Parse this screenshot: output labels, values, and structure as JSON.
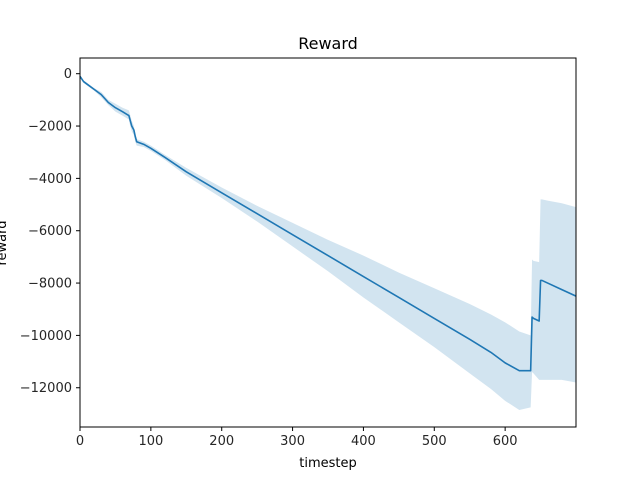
{
  "chart_data": {
    "type": "line",
    "title": "Reward",
    "xlabel": "timestep",
    "ylabel": "reward",
    "xlim": [
      0,
      700
    ],
    "ylim": [
      -13500,
      600
    ],
    "x_ticks": [
      0,
      100,
      200,
      300,
      400,
      500,
      600
    ],
    "y_ticks": [
      0,
      -2000,
      -4000,
      -6000,
      -8000,
      -10000,
      -12000
    ],
    "x_tick_labels": [
      "0",
      "100",
      "200",
      "300",
      "400",
      "500",
      "600"
    ],
    "y_tick_labels": [
      "0",
      "−2000",
      "−4000",
      "−6000",
      "−8000",
      "−10000",
      "−12000"
    ],
    "grid": false,
    "line_color": "#1f77b4",
    "band_color": "#1f77b4",
    "series": [
      {
        "x": [
          0,
          5,
          10,
          20,
          30,
          40,
          50,
          60,
          69,
          70,
          73,
          76,
          78,
          80,
          90,
          100,
          120,
          150,
          200,
          250,
          300,
          350,
          400,
          450,
          500,
          550,
          580,
          600,
          620,
          636,
          638,
          640,
          648,
          650,
          652,
          660,
          680,
          700
        ],
        "values": [
          -100,
          -300,
          -400,
          -600,
          -800,
          -1100,
          -1300,
          -1450,
          -1600,
          -1700,
          -2000,
          -2150,
          -2400,
          -2600,
          -2700,
          -2850,
          -3200,
          -3750,
          -4550,
          -5350,
          -6150,
          -6950,
          -7750,
          -8550,
          -9350,
          -10150,
          -10650,
          -11050,
          -11350,
          -11350,
          -9300,
          -9350,
          -9450,
          -7900,
          -7900,
          -8000,
          -8250,
          -8500
        ],
        "upper": [
          -100,
          -250,
          -350,
          -550,
          -700,
          -1000,
          -1150,
          -1300,
          -1400,
          -1500,
          -1800,
          -2000,
          -2300,
          -2500,
          -2600,
          -2750,
          -3100,
          -3600,
          -4350,
          -5050,
          -5700,
          -6350,
          -6950,
          -7600,
          -8200,
          -8800,
          -9200,
          -9500,
          -9850,
          -10000,
          -7100,
          -7150,
          -7200,
          -4800,
          -4800,
          -4850,
          -4950,
          -5100
        ],
        "lower": [
          -100,
          -350,
          -450,
          -650,
          -900,
          -1200,
          -1450,
          -1600,
          -1750,
          -1900,
          -2200,
          -2350,
          -2600,
          -2750,
          -2800,
          -2950,
          -3300,
          -3900,
          -4750,
          -5650,
          -6600,
          -7550,
          -8550,
          -9500,
          -10450,
          -11450,
          -12050,
          -12500,
          -12850,
          -12750,
          -11400,
          -11450,
          -11700,
          -11700,
          -11700,
          -11700,
          -11700,
          -11800
        ]
      }
    ]
  }
}
